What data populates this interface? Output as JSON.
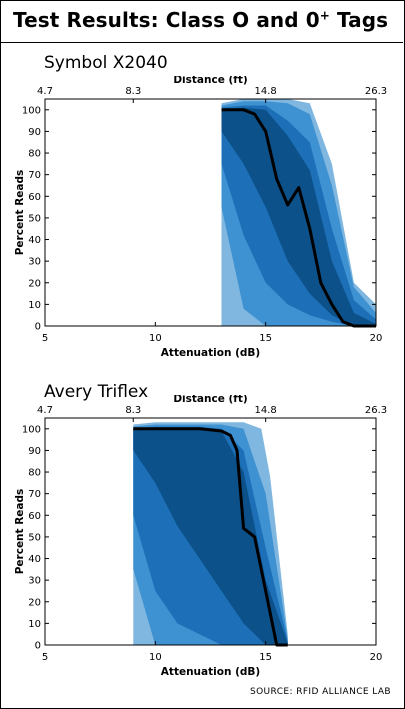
{
  "title": {
    "main": "Test Results: Class O and 0",
    "sup": "+",
    "tail": " Tags"
  },
  "source": "SOURCE: RFID ALLIANCE LAB",
  "colors": {
    "band_light": "#6aaadb",
    "band_mid": "#3b8fd0",
    "band_dark": "#1b6fb6",
    "band_darker": "#0c4f86",
    "median": "#000000"
  },
  "chart_data": [
    {
      "type": "area",
      "title": "Symbol X2040",
      "xlabel": "Attenuation (dB)",
      "ylabel": "Percent Reads",
      "top_axis_label": "Distance (ft)",
      "xlim": [
        5,
        20
      ],
      "ylim": [
        0,
        105
      ],
      "x_ticks": [
        5,
        10,
        15,
        20
      ],
      "y_ticks": [
        0,
        10,
        20,
        30,
        40,
        50,
        60,
        70,
        80,
        90,
        100
      ],
      "top_ticks": [
        {
          "x": 5,
          "label": "4.7"
        },
        {
          "x": 9,
          "label": "8.3"
        },
        {
          "x": 15,
          "label": "14.8"
        },
        {
          "x": 20,
          "label": "26.3"
        }
      ],
      "median": {
        "x": [
          13,
          14,
          14.5,
          15,
          15.5,
          16,
          16.5,
          17,
          17.5,
          18,
          18.5,
          19,
          19.5,
          20
        ],
        "y": [
          100,
          100,
          98,
          90,
          68,
          56,
          64,
          45,
          20,
          10,
          2,
          0,
          0,
          0
        ]
      },
      "bands": [
        {
          "x": [
            13,
            14,
            15,
            16,
            17,
            18,
            19,
            20
          ],
          "lo": [
            0,
            0,
            0,
            0,
            0,
            0,
            0,
            0
          ],
          "hi": [
            103,
            105,
            105,
            105,
            103,
            75,
            20,
            10
          ]
        },
        {
          "x": [
            13,
            14,
            15,
            16,
            17,
            18,
            19,
            20
          ],
          "lo": [
            55,
            8,
            0,
            0,
            0,
            0,
            0,
            0
          ],
          "hi": [
            102,
            104,
            104,
            103,
            98,
            65,
            18,
            6
          ]
        },
        {
          "x": [
            13,
            14,
            15,
            16,
            17,
            18,
            19,
            20
          ],
          "lo": [
            75,
            42,
            20,
            10,
            5,
            2,
            0,
            0
          ],
          "hi": [
            101,
            102,
            102,
            95,
            85,
            45,
            12,
            3
          ]
        },
        {
          "x": [
            13,
            14,
            15,
            16,
            17,
            18,
            19,
            20
          ],
          "lo": [
            90,
            75,
            55,
            30,
            15,
            5,
            0,
            0
          ],
          "hi": [
            100,
            101,
            100,
            88,
            72,
            30,
            6,
            1
          ]
        }
      ]
    },
    {
      "type": "area",
      "title": "Avery Triflex",
      "xlabel": "Attenuation (dB)",
      "ylabel": "Percent Reads",
      "top_axis_label": "Distance (ft)",
      "xlim": [
        5,
        20
      ],
      "ylim": [
        0,
        105
      ],
      "x_ticks": [
        5,
        10,
        15,
        20
      ],
      "y_ticks": [
        0,
        10,
        20,
        30,
        40,
        50,
        60,
        70,
        80,
        90,
        100
      ],
      "top_ticks": [
        {
          "x": 5,
          "label": "4.7"
        },
        {
          "x": 9,
          "label": "8.3"
        },
        {
          "x": 15,
          "label": "14.8"
        },
        {
          "x": 20,
          "label": "26.3"
        }
      ],
      "median": {
        "x": [
          9,
          10,
          11,
          12,
          13,
          13.4,
          13.7,
          14,
          14.5,
          15,
          15.5,
          16
        ],
        "y": [
          100,
          100,
          100,
          100,
          99,
          97,
          90,
          54,
          50,
          25,
          0,
          0
        ]
      },
      "bands": [
        {
          "x": [
            9,
            10,
            11,
            12,
            13,
            14,
            14.8,
            15.2,
            16
          ],
          "lo": [
            0,
            0,
            0,
            0,
            0,
            0,
            0,
            0,
            0
          ],
          "hi": [
            102,
            103,
            103,
            103,
            103,
            103,
            100,
            78,
            5
          ]
        },
        {
          "x": [
            9,
            10,
            11,
            12,
            13,
            14,
            15,
            16
          ],
          "lo": [
            35,
            0,
            0,
            0,
            0,
            0,
            0,
            0
          ],
          "hi": [
            101,
            102,
            102,
            102,
            102,
            100,
            70,
            3
          ]
        },
        {
          "x": [
            9,
            10,
            11,
            12,
            13,
            14,
            15,
            16
          ],
          "lo": [
            60,
            25,
            10,
            5,
            0,
            0,
            0,
            0
          ],
          "hi": [
            100,
            101,
            101,
            101,
            100,
            90,
            45,
            2
          ]
        },
        {
          "x": [
            9,
            10,
            11,
            12,
            13,
            14,
            15,
            16
          ],
          "lo": [
            90,
            75,
            55,
            40,
            25,
            10,
            0,
            0
          ],
          "hi": [
            100,
            100,
            100,
            100,
            99,
            80,
            30,
            1
          ]
        }
      ]
    }
  ]
}
